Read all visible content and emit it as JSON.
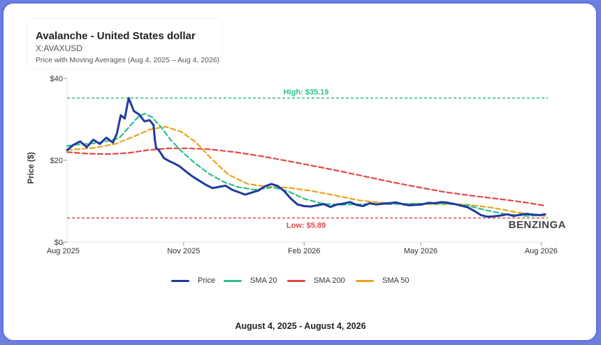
{
  "header": {
    "title": "Avalanche - United States dollar",
    "ticker": "X:AVAXUSD",
    "subtitle": "Price with Moving Averages (Aug 4, 2025 – Aug 4, 2026)"
  },
  "footer": {
    "date_range": "August 4, 2025 - August 4, 2026"
  },
  "watermark": "BENZINGA",
  "colors": {
    "price": "#1f3a9e",
    "sma20": "#2fbf8a",
    "sma200": "#e04848",
    "sma50": "#eaa21c",
    "high_line": "#2fbf8a",
    "low_line": "#e04848"
  },
  "chart_data": {
    "type": "line",
    "ylabel": "Price ($)",
    "xlabel": "",
    "ylim": [
      0,
      40
    ],
    "xlim": [
      "2025-08-04",
      "2026-08-04"
    ],
    "y_ticks": [
      {
        "value": 0,
        "label": "$0"
      },
      {
        "value": 20,
        "label": "$20"
      },
      {
        "value": 40,
        "label": "$40"
      }
    ],
    "x_ticks": [
      {
        "date": "2025-08-01",
        "label": "Aug 2025"
      },
      {
        "date": "2025-11-01",
        "label": "Nov 2025"
      },
      {
        "date": "2026-02-01",
        "label": "Feb 2026"
      },
      {
        "date": "2026-05-01",
        "label": "May 2026"
      },
      {
        "date": "2026-08-01",
        "label": "Aug 2026"
      }
    ],
    "reference_lines": [
      {
        "name": "high",
        "value": 35.19,
        "label": "High: $35.19"
      },
      {
        "name": "low",
        "value": 5.89,
        "label": "Low: $5.89"
      }
    ],
    "series": [
      {
        "name": "Price",
        "key": "price",
        "x": [
          "2025-08-04",
          "2025-08-09",
          "2025-08-14",
          "2025-08-19",
          "2025-08-24",
          "2025-08-29",
          "2025-09-03",
          "2025-09-08",
          "2025-09-11",
          "2025-09-14",
          "2025-09-17",
          "2025-09-20",
          "2025-09-24",
          "2025-09-28",
          "2025-10-02",
          "2025-10-06",
          "2025-10-09",
          "2025-10-10",
          "2025-10-11",
          "2025-10-13",
          "2025-10-17",
          "2025-10-21",
          "2025-10-25",
          "2025-10-29",
          "2025-11-03",
          "2025-11-08",
          "2025-11-13",
          "2025-11-18",
          "2025-11-23",
          "2025-11-28",
          "2025-12-03",
          "2025-12-08",
          "2025-12-13",
          "2025-12-18",
          "2025-12-23",
          "2025-12-28",
          "2026-01-02",
          "2026-01-07",
          "2026-01-12",
          "2026-01-17",
          "2026-01-22",
          "2026-01-27",
          "2026-02-01",
          "2026-02-06",
          "2026-02-11",
          "2026-02-16",
          "2026-02-21",
          "2026-02-26",
          "2026-03-03",
          "2026-03-08",
          "2026-03-13",
          "2026-03-18",
          "2026-03-23",
          "2026-03-28",
          "2026-04-02",
          "2026-04-07",
          "2026-04-12",
          "2026-04-17",
          "2026-04-22",
          "2026-04-27",
          "2026-05-02",
          "2026-05-07",
          "2026-05-12",
          "2026-05-17",
          "2026-05-22",
          "2026-05-27",
          "2026-06-01",
          "2026-06-06",
          "2026-06-11",
          "2026-06-16",
          "2026-06-21",
          "2026-06-26",
          "2026-07-01",
          "2026-07-06",
          "2026-07-11",
          "2026-07-16",
          "2026-07-21",
          "2026-07-26",
          "2026-07-31",
          "2026-08-04"
        ],
        "values": [
          22.5,
          23.8,
          24.6,
          23.2,
          25.0,
          24.0,
          25.5,
          24.3,
          26.5,
          31.0,
          30.2,
          35.19,
          32.0,
          31.2,
          29.5,
          29.8,
          28.6,
          25.0,
          23.0,
          22.5,
          20.5,
          19.8,
          19.2,
          18.5,
          17.2,
          16.0,
          15.0,
          14.0,
          13.2,
          13.5,
          13.8,
          12.8,
          12.2,
          11.6,
          12.1,
          12.6,
          13.6,
          14.2,
          13.7,
          12.4,
          10.6,
          9.2,
          8.8,
          8.7,
          9.0,
          9.3,
          8.6,
          9.2,
          9.4,
          9.8,
          9.1,
          8.8,
          9.5,
          9.2,
          9.4,
          9.5,
          9.7,
          9.3,
          9.0,
          9.1,
          9.2,
          9.6,
          9.5,
          9.8,
          9.6,
          9.3,
          8.9,
          8.5,
          7.6,
          6.6,
          6.2,
          6.3,
          6.5,
          6.8,
          6.4,
          6.7,
          6.9,
          6.7,
          6.6,
          6.8
        ]
      },
      {
        "name": "SMA 20",
        "key": "sma20",
        "x": [
          "2025-08-04",
          "2025-08-14",
          "2025-08-24",
          "2025-09-03",
          "2025-09-13",
          "2025-09-20",
          "2025-09-27",
          "2025-10-02",
          "2025-10-08",
          "2025-10-15",
          "2025-10-22",
          "2025-10-31",
          "2025-11-10",
          "2025-11-20",
          "2025-12-01",
          "2025-12-12",
          "2025-12-25",
          "2026-01-08",
          "2026-01-20",
          "2026-02-01",
          "2026-02-15",
          "2026-03-01",
          "2026-03-20",
          "2026-04-10",
          "2026-05-01",
          "2026-05-20",
          "2026-06-05",
          "2026-06-20",
          "2026-07-05",
          "2026-07-20",
          "2026-08-04"
        ],
        "values": [
          23.5,
          23.9,
          24.1,
          24.6,
          25.5,
          28.0,
          30.5,
          31.4,
          30.5,
          28.0,
          25.0,
          22.0,
          19.2,
          16.8,
          14.8,
          13.5,
          12.8,
          13.4,
          12.4,
          10.6,
          9.4,
          9.1,
          9.3,
          9.3,
          9.4,
          9.4,
          9.0,
          7.8,
          6.8,
          6.4,
          6.6
        ]
      },
      {
        "name": "SMA 200",
        "key": "sma200",
        "x": [
          "2025-08-04",
          "2025-08-20",
          "2025-09-05",
          "2025-09-20",
          "2025-10-05",
          "2025-10-20",
          "2025-11-05",
          "2025-11-20",
          "2025-12-10",
          "2026-01-01",
          "2026-01-20",
          "2026-02-10",
          "2026-03-01",
          "2026-03-20",
          "2026-04-10",
          "2026-05-01",
          "2026-05-20",
          "2026-06-10",
          "2026-07-01",
          "2026-07-20",
          "2026-08-04"
        ],
        "values": [
          22.0,
          21.6,
          21.5,
          21.8,
          22.5,
          22.9,
          22.9,
          22.7,
          22.0,
          20.9,
          19.8,
          18.5,
          17.3,
          16.0,
          14.6,
          13.3,
          12.2,
          11.3,
          10.5,
          9.7,
          8.9
        ]
      },
      {
        "name": "SMA 50",
        "key": "sma50",
        "x": [
          "2025-08-04",
          "2025-08-24",
          "2025-09-10",
          "2025-09-24",
          "2025-10-06",
          "2025-10-18",
          "2025-10-30",
          "2025-11-10",
          "2025-11-22",
          "2025-12-05",
          "2025-12-20",
          "2026-01-05",
          "2026-01-20",
          "2026-02-05",
          "2026-02-25",
          "2026-03-15",
          "2026-04-05",
          "2026-04-25",
          "2026-05-15",
          "2026-06-05",
          "2026-06-25",
          "2026-07-15",
          "2026-08-04"
        ],
        "values": [
          22.5,
          23.0,
          24.0,
          25.8,
          27.5,
          28.2,
          27.0,
          24.5,
          20.5,
          16.5,
          14.2,
          13.5,
          13.3,
          12.6,
          11.4,
          10.2,
          9.5,
          9.3,
          9.3,
          9.2,
          8.4,
          7.2,
          6.4
        ]
      }
    ],
    "legend": {
      "placement": "bottom",
      "items": [
        {
          "name": "Price",
          "key": "price"
        },
        {
          "name": "SMA 20",
          "key": "sma20"
        },
        {
          "name": "SMA 200",
          "key": "sma200"
        },
        {
          "name": "SMA 50",
          "key": "sma50"
        }
      ]
    }
  }
}
